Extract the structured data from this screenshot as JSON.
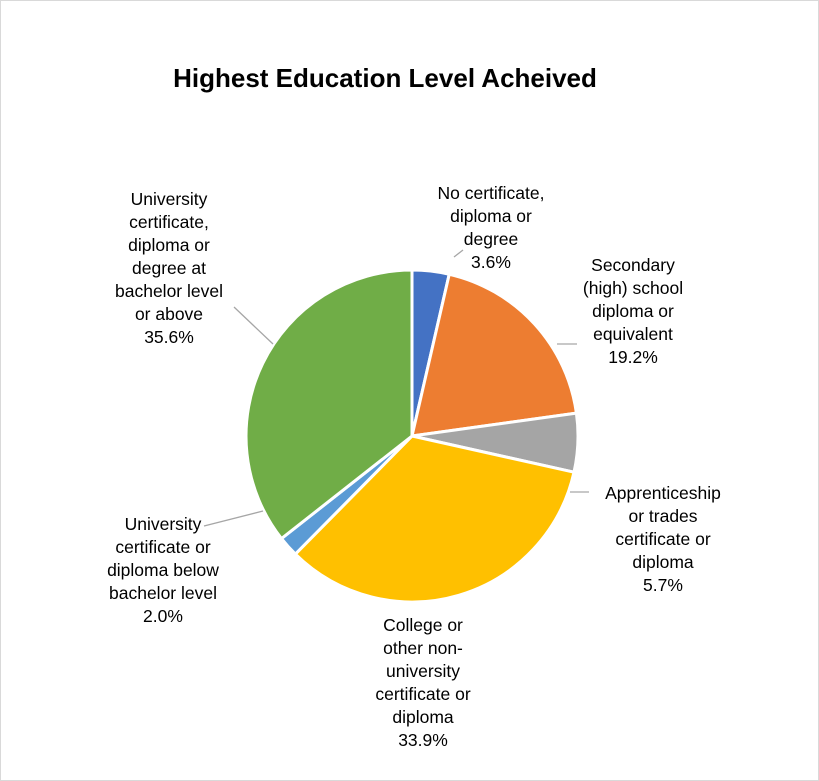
{
  "chart_data": {
    "type": "pie",
    "title": "Highest Education Level Acheived",
    "slices": [
      {
        "label_lines": [
          "No certificate,",
          "diploma or",
          "degree"
        ],
        "value_label": "3.6%",
        "value": 3.6,
        "color": "#4472c4"
      },
      {
        "label_lines": [
          "Secondary",
          "(high) school",
          "diploma or",
          "equivalent"
        ],
        "value_label": "19.2%",
        "value": 19.2,
        "color": "#ed7d31"
      },
      {
        "label_lines": [
          "Apprenticeship",
          "or trades",
          "certificate or",
          "diploma"
        ],
        "value_label": "5.7%",
        "value": 5.7,
        "color": "#a5a5a5"
      },
      {
        "label_lines": [
          "College or",
          "other non-",
          "university",
          "certificate or",
          "diploma"
        ],
        "value_label": "33.9%",
        "value": 33.9,
        "color": "#ffc000"
      },
      {
        "label_lines": [
          "University",
          "certificate or",
          "diploma below",
          "bachelor level"
        ],
        "value_label": "2.0%",
        "value": 2.0,
        "color": "#5b9bd5"
      },
      {
        "label_lines": [
          "University",
          "certificate,",
          "diploma or",
          "degree at",
          "bachelor level",
          "or above"
        ],
        "value_label": "35.6%",
        "value": 35.6,
        "color": "#70ad47"
      }
    ],
    "leader_line_color": "#a6a6a6",
    "legend": "none"
  }
}
